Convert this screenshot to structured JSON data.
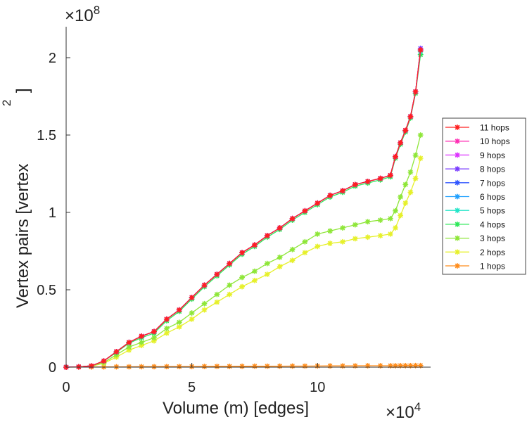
{
  "chart_data": {
    "type": "line",
    "title": "",
    "xlabel": "Volume (m) [edges]",
    "ylabel": "Vertex pairs [vertex",
    "ylabel_superscript": "2",
    "ylabel_close": "]",
    "x_exponent_label": "×10",
    "x_exponent_power": "4",
    "y_exponent_label": "×10",
    "y_exponent_power": "8",
    "xlim": [
      0,
      14.5
    ],
    "ylim": [
      0,
      2.2
    ],
    "x_ticks": [
      0,
      5,
      10
    ],
    "x_tick_labels": [
      "0",
      "5",
      "10"
    ],
    "y_ticks": [
      0,
      0.5,
      1,
      1.5,
      2
    ],
    "y_tick_labels": [
      "0",
      "0.5",
      "1",
      "1.5",
      "2"
    ],
    "x_units_note": "x values in units of 10^4 edges; y values in units of 10^8 vertex pairs",
    "grid": false,
    "legend_position": "right",
    "x": [
      0,
      0.5,
      1,
      1.5,
      2,
      2.5,
      3,
      3.5,
      4,
      4.5,
      5,
      5.5,
      6,
      6.5,
      7,
      7.5,
      8,
      8.5,
      9,
      9.5,
      10,
      10.5,
      11,
      11.5,
      12,
      12.5,
      12.9,
      13.1,
      13.3,
      13.5,
      13.7,
      13.9,
      14.1
    ],
    "series": [
      {
        "name": "11 hops",
        "color": "#ff2020",
        "values": [
          0,
          0.002,
          0.008,
          0.04,
          0.1,
          0.16,
          0.2,
          0.23,
          0.31,
          0.37,
          0.45,
          0.53,
          0.6,
          0.67,
          0.74,
          0.79,
          0.85,
          0.9,
          0.96,
          1.01,
          1.06,
          1.11,
          1.14,
          1.18,
          1.2,
          1.22,
          1.24,
          1.36,
          1.45,
          1.53,
          1.62,
          1.78,
          2.05
        ]
      },
      {
        "name": "10 hops",
        "color": "#ff2db4",
        "values": [
          0,
          0.002,
          0.008,
          0.04,
          0.1,
          0.16,
          0.2,
          0.23,
          0.31,
          0.37,
          0.45,
          0.53,
          0.6,
          0.67,
          0.74,
          0.79,
          0.85,
          0.9,
          0.96,
          1.01,
          1.06,
          1.11,
          1.14,
          1.18,
          1.2,
          1.22,
          1.24,
          1.36,
          1.45,
          1.53,
          1.62,
          1.78,
          2.05
        ]
      },
      {
        "name": "9 hops",
        "color": "#dd33ff",
        "values": [
          0,
          0.002,
          0.008,
          0.04,
          0.1,
          0.16,
          0.2,
          0.23,
          0.31,
          0.37,
          0.45,
          0.53,
          0.6,
          0.67,
          0.74,
          0.79,
          0.85,
          0.9,
          0.96,
          1.01,
          1.06,
          1.11,
          1.14,
          1.18,
          1.2,
          1.22,
          1.24,
          1.36,
          1.45,
          1.53,
          1.62,
          1.78,
          2.05
        ]
      },
      {
        "name": "8 hops",
        "color": "#7a3cff",
        "values": [
          0,
          0.002,
          0.008,
          0.04,
          0.1,
          0.16,
          0.2,
          0.23,
          0.31,
          0.37,
          0.45,
          0.53,
          0.6,
          0.67,
          0.74,
          0.79,
          0.85,
          0.9,
          0.96,
          1.01,
          1.06,
          1.11,
          1.14,
          1.18,
          1.2,
          1.22,
          1.24,
          1.36,
          1.45,
          1.53,
          1.62,
          1.78,
          2.06
        ]
      },
      {
        "name": "7 hops",
        "color": "#2f55ff",
        "values": [
          0,
          0.002,
          0.008,
          0.04,
          0.1,
          0.16,
          0.2,
          0.23,
          0.31,
          0.37,
          0.45,
          0.53,
          0.6,
          0.67,
          0.74,
          0.79,
          0.85,
          0.9,
          0.96,
          1.01,
          1.06,
          1.11,
          1.14,
          1.18,
          1.2,
          1.22,
          1.24,
          1.36,
          1.45,
          1.53,
          1.62,
          1.78,
          2.05
        ]
      },
      {
        "name": "6 hops",
        "color": "#1fa0ff",
        "values": [
          0,
          0.002,
          0.008,
          0.04,
          0.1,
          0.16,
          0.2,
          0.23,
          0.31,
          0.37,
          0.45,
          0.53,
          0.6,
          0.67,
          0.74,
          0.79,
          0.85,
          0.9,
          0.96,
          1.01,
          1.06,
          1.11,
          1.14,
          1.18,
          1.2,
          1.22,
          1.24,
          1.36,
          1.45,
          1.53,
          1.62,
          1.78,
          2.05
        ]
      },
      {
        "name": "5 hops",
        "color": "#22e5c8",
        "values": [
          0,
          0.002,
          0.008,
          0.04,
          0.1,
          0.16,
          0.2,
          0.23,
          0.31,
          0.37,
          0.45,
          0.53,
          0.6,
          0.67,
          0.74,
          0.79,
          0.85,
          0.9,
          0.96,
          1.01,
          1.06,
          1.11,
          1.14,
          1.18,
          1.2,
          1.22,
          1.24,
          1.36,
          1.45,
          1.53,
          1.62,
          1.78,
          2.04
        ]
      },
      {
        "name": "4 hops",
        "color": "#2ee85a",
        "values": [
          0,
          0.002,
          0.008,
          0.04,
          0.095,
          0.155,
          0.19,
          0.22,
          0.3,
          0.36,
          0.44,
          0.52,
          0.59,
          0.66,
          0.73,
          0.78,
          0.84,
          0.89,
          0.95,
          1.0,
          1.05,
          1.1,
          1.13,
          1.17,
          1.19,
          1.21,
          1.23,
          1.35,
          1.44,
          1.52,
          1.61,
          1.77,
          2.02
        ]
      },
      {
        "name": "3 hops",
        "color": "#8ee638",
        "values": [
          0,
          0.002,
          0.007,
          0.03,
          0.08,
          0.13,
          0.16,
          0.19,
          0.25,
          0.29,
          0.35,
          0.41,
          0.47,
          0.53,
          0.58,
          0.62,
          0.67,
          0.71,
          0.76,
          0.81,
          0.86,
          0.88,
          0.9,
          0.92,
          0.94,
          0.95,
          0.96,
          1.01,
          1.1,
          1.18,
          1.26,
          1.37,
          1.5
        ]
      },
      {
        "name": "2 hops",
        "color": "#e6f02a",
        "values": [
          0,
          0.002,
          0.006,
          0.025,
          0.065,
          0.11,
          0.14,
          0.17,
          0.22,
          0.26,
          0.31,
          0.37,
          0.42,
          0.47,
          0.52,
          0.56,
          0.6,
          0.65,
          0.69,
          0.74,
          0.78,
          0.8,
          0.81,
          0.83,
          0.84,
          0.85,
          0.86,
          0.9,
          0.98,
          1.06,
          1.13,
          1.22,
          1.35
        ]
      },
      {
        "name": "1 hops",
        "color": "#ff8c1a",
        "values": [
          0,
          0.0005,
          0.001,
          0.0015,
          0.002,
          0.0025,
          0.003,
          0.003,
          0.0035,
          0.004,
          0.004,
          0.0045,
          0.005,
          0.005,
          0.0055,
          0.006,
          0.006,
          0.0065,
          0.007,
          0.007,
          0.0075,
          0.008,
          0.008,
          0.0085,
          0.009,
          0.009,
          0.009,
          0.009,
          0.0095,
          0.0095,
          0.0095,
          0.01,
          0.01
        ]
      }
    ]
  }
}
